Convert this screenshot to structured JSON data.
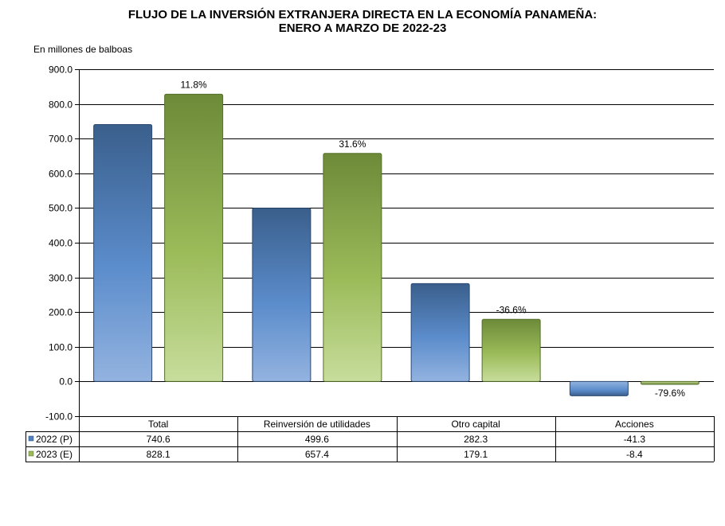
{
  "chart_data": {
    "type": "bar",
    "title_line1": "FLUJO DE LA INVERSIÓN EXTRANJERA DIRECTA EN LA ECONOMÍA PANAMEÑA:",
    "title_line2": "ENERO A MARZO  DE 2022-23",
    "ylabel": "En millones de balboas",
    "categories": [
      "Total",
      "Reinversión de utilidades",
      "Otro capital",
      "Acciones"
    ],
    "ylim": [
      -100,
      900
    ],
    "yticks": [
      "900.0",
      "800.0",
      "700.0",
      "600.0",
      "500.0",
      "400.0",
      "300.0",
      "200.0",
      "100.0",
      "0.0",
      "-100.0"
    ],
    "series": [
      {
        "name": "2022 (P)",
        "values": [
          740.6,
          499.6,
          282.3,
          -41.3
        ],
        "display": [
          "740.6",
          "499.6",
          "282.3",
          "-41.3"
        ],
        "color": "#4f81bd"
      },
      {
        "name": "2023 (E)",
        "values": [
          828.1,
          657.4,
          179.1,
          -8.4
        ],
        "display": [
          "828.1",
          "657.4",
          "179.1",
          "-8.4"
        ],
        "color": "#9bbb59"
      }
    ],
    "change_labels": [
      "11.8%",
      "31.6%",
      "-36.6%",
      "-79.6%"
    ],
    "grid": true,
    "legend": "data-table"
  }
}
